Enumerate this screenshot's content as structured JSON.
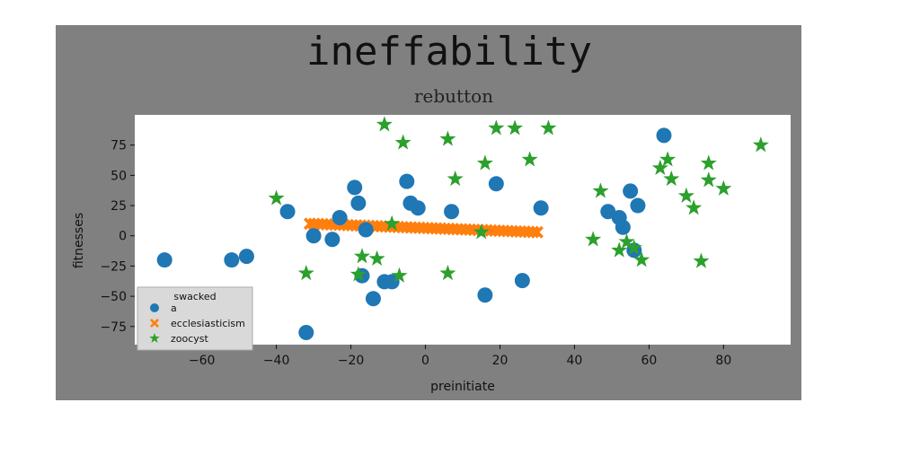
{
  "chart_data": {
    "type": "scatter",
    "title": "ineffability",
    "subtitle": "rebutton",
    "xlabel": "preinitiate",
    "ylabel": "fitnesses",
    "xlim": [
      -78,
      98
    ],
    "ylim": [
      -90,
      100
    ],
    "xticks": [
      -60,
      -40,
      -20,
      0,
      20,
      40,
      60,
      80
    ],
    "yticks": [
      -75,
      -50,
      -25,
      0,
      25,
      50,
      75
    ],
    "grid": false,
    "legend": {
      "title": "swacked",
      "placement": "lower-left"
    },
    "series": [
      {
        "name": "a",
        "marker": "circle",
        "color": "#1f77b4",
        "points": [
          [
            -70,
            -20
          ],
          [
            -52,
            -20
          ],
          [
            -48,
            -17
          ],
          [
            -37,
            20
          ],
          [
            -32,
            -80
          ],
          [
            -30,
            0
          ],
          [
            -25,
            -3
          ],
          [
            -23,
            15
          ],
          [
            -19,
            40
          ],
          [
            -18,
            27
          ],
          [
            -17,
            -33
          ],
          [
            -16,
            5
          ],
          [
            -14,
            -52
          ],
          [
            -11,
            -38
          ],
          [
            -9,
            -38
          ],
          [
            -5,
            45
          ],
          [
            -4,
            27
          ],
          [
            -2,
            23
          ],
          [
            7,
            20
          ],
          [
            16,
            -49
          ],
          [
            19,
            43
          ],
          [
            26,
            -37
          ],
          [
            31,
            23
          ],
          [
            49,
            20
          ],
          [
            52,
            15
          ],
          [
            53,
            7
          ],
          [
            55,
            37
          ],
          [
            56,
            -12
          ],
          [
            57,
            25
          ],
          [
            64,
            83
          ]
        ]
      },
      {
        "name": "ecclesiasticism",
        "marker": "x",
        "color": "#ff7f0e",
        "x_range": [
          -31,
          30
        ],
        "y_start": 10,
        "y_end": 3,
        "count": 55
      },
      {
        "name": "zoocyst",
        "marker": "star",
        "color": "#2ca02c",
        "points": [
          [
            -40,
            31
          ],
          [
            -32,
            -31
          ],
          [
            -18,
            -32
          ],
          [
            -17,
            -17
          ],
          [
            -13,
            -19
          ],
          [
            -11,
            92
          ],
          [
            -9,
            10
          ],
          [
            -7,
            -33
          ],
          [
            -6,
            77
          ],
          [
            6,
            -31
          ],
          [
            6,
            80
          ],
          [
            8,
            47
          ],
          [
            15,
            3
          ],
          [
            16,
            60
          ],
          [
            19,
            89
          ],
          [
            24,
            89
          ],
          [
            28,
            63
          ],
          [
            33,
            89
          ],
          [
            45,
            -3
          ],
          [
            47,
            37
          ],
          [
            52,
            -12
          ],
          [
            54,
            -5
          ],
          [
            56,
            -10
          ],
          [
            58,
            -20
          ],
          [
            63,
            56
          ],
          [
            65,
            63
          ],
          [
            66,
            47
          ],
          [
            70,
            33
          ],
          [
            72,
            23
          ],
          [
            74,
            -21
          ],
          [
            76,
            60
          ],
          [
            76,
            46
          ],
          [
            80,
            39
          ],
          [
            90,
            75
          ]
        ]
      }
    ]
  }
}
